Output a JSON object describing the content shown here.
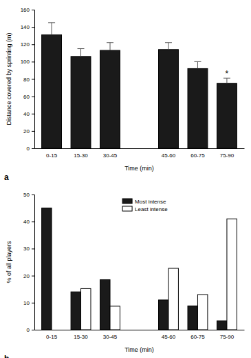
{
  "chart_data": [
    {
      "type": "bar",
      "title": "a",
      "y_label": "Distance covered by sprinting (m)",
      "x_label": "Time (min)",
      "categories": [
        "0-15",
        "15-30",
        "30-45",
        null,
        "45-60",
        "60-75",
        "75-90"
      ],
      "values": [
        131,
        106,
        113,
        null,
        114,
        92,
        75
      ],
      "error": [
        14,
        9,
        9,
        null,
        8,
        8,
        6
      ],
      "color": "#1a1a1a",
      "ylim": [
        0,
        160
      ],
      "yticks": [
        0,
        20,
        40,
        60,
        80,
        100,
        120,
        140,
        160
      ],
      "annotations": [
        {
          "text": "*",
          "category": "75-90"
        }
      ]
    },
    {
      "type": "bar",
      "title": "b",
      "y_label": "% of all players",
      "x_label": "Time (min)",
      "categories": [
        "0-15",
        "15-30",
        "30-45",
        null,
        "45-60",
        "60-75",
        "75-90"
      ],
      "series": [
        {
          "name": "Most intense",
          "color": "#1a1a1a",
          "values": [
            45,
            14,
            18.5,
            null,
            11,
            8.8,
            3.3
          ]
        },
        {
          "name": "Least intense",
          "color": "#ffffff",
          "values": [
            0,
            15.2,
            8.7,
            null,
            22.7,
            13,
            41
          ]
        }
      ],
      "legend": "top",
      "ylim": [
        0,
        50
      ],
      "yticks": [
        0,
        10,
        20,
        30,
        40,
        50
      ]
    }
  ]
}
